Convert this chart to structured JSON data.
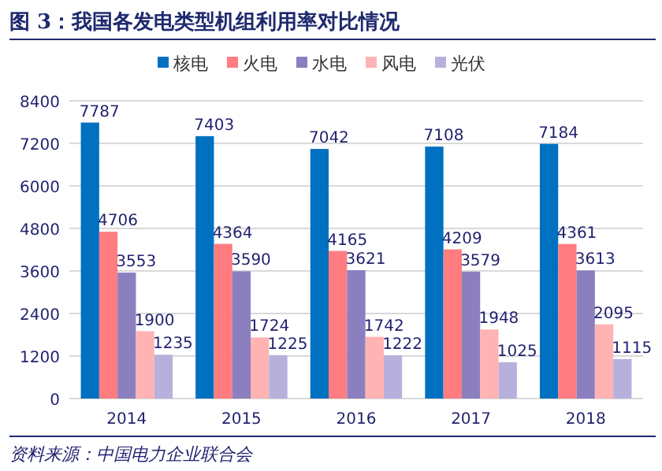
{
  "chart_data": {
    "type": "bar",
    "title": "图 3：我国各发电类型机组利用率对比情况",
    "categories": [
      "2014",
      "2015",
      "2016",
      "2017",
      "2018"
    ],
    "series": [
      {
        "name": "核电",
        "color": "#0070c0",
        "values": [
          7787,
          7403,
          7042,
          7108,
          7184
        ]
      },
      {
        "name": "火电",
        "color": "#ff7c80",
        "values": [
          4706,
          4364,
          4165,
          4209,
          4361
        ]
      },
      {
        "name": "水电",
        "color": "#8b7fc0",
        "values": [
          3553,
          3590,
          3621,
          3579,
          3613
        ]
      },
      {
        "name": "风电",
        "color": "#ffb3b3",
        "values": [
          1900,
          1724,
          1742,
          1948,
          2095
        ]
      },
      {
        "name": "光伏",
        "color": "#b8b0dc",
        "values": [
          1235,
          1225,
          1222,
          1025,
          1115
        ]
      }
    ],
    "ylim": [
      0,
      8400
    ],
    "yticks": [
      0,
      1200,
      2400,
      3600,
      4800,
      6000,
      7200,
      8400
    ],
    "grid": "y",
    "legend": "top",
    "data_labels": true,
    "annotations": [
      "资料来源：中国电力企业联合会"
    ]
  }
}
